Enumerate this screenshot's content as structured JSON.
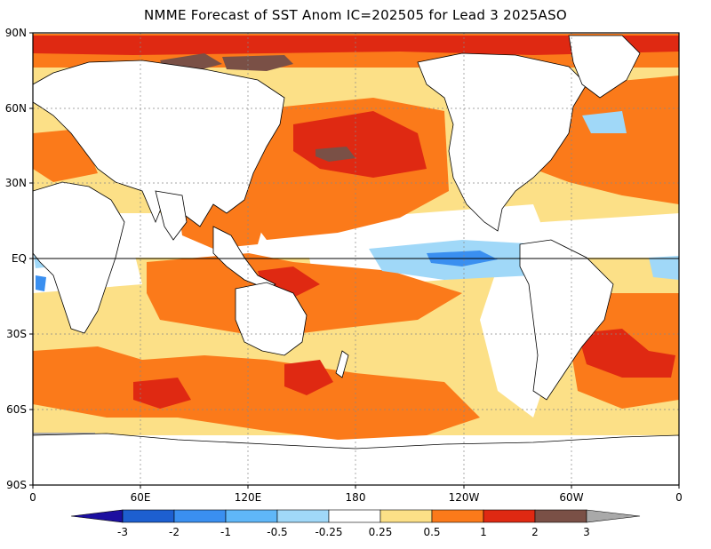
{
  "map": {
    "title": "NMME Forecast of SST Anom IC=202505 for Lead 3 2025ASO",
    "lat_labels": [
      "90N",
      "60N",
      "30N",
      "EQ",
      "30S",
      "60S",
      "90S"
    ],
    "lon_labels": [
      "0",
      "60E",
      "120E",
      "180",
      "120W",
      "60W",
      "0"
    ],
    "equator_line": true,
    "grid": "dotted",
    "colors": {
      "ice_gray": "#a9a9a9",
      "land": "#ffffff"
    },
    "anomaly_regions": [
      {
        "name": "arctic-warm",
        "level": "1-2"
      },
      {
        "name": "north-pacific-warm",
        "level": "1-2"
      },
      {
        "name": "north-atlantic-warm",
        "level": "1-2"
      },
      {
        "name": "equatorial-east-pacific-cool",
        "level": "-0.5 to -1"
      },
      {
        "name": "indo-pacific-warm",
        "level": "0.5-1"
      },
      {
        "name": "southern-ocean-warm",
        "level": "0.5-2"
      }
    ]
  },
  "colorbar": {
    "labels": [
      "-3",
      "-2",
      "-1",
      "-0.5",
      "-0.25",
      "0.25",
      "0.5",
      "1",
      "2",
      "3"
    ],
    "colors": [
      "#1c0fa0",
      "#1d5fd0",
      "#3a8ff0",
      "#a0d8f8",
      "#ffffff",
      "#fce087",
      "#fb7a1a",
      "#df2912",
      "#7a5046",
      "#a9a9a9"
    ]
  }
}
